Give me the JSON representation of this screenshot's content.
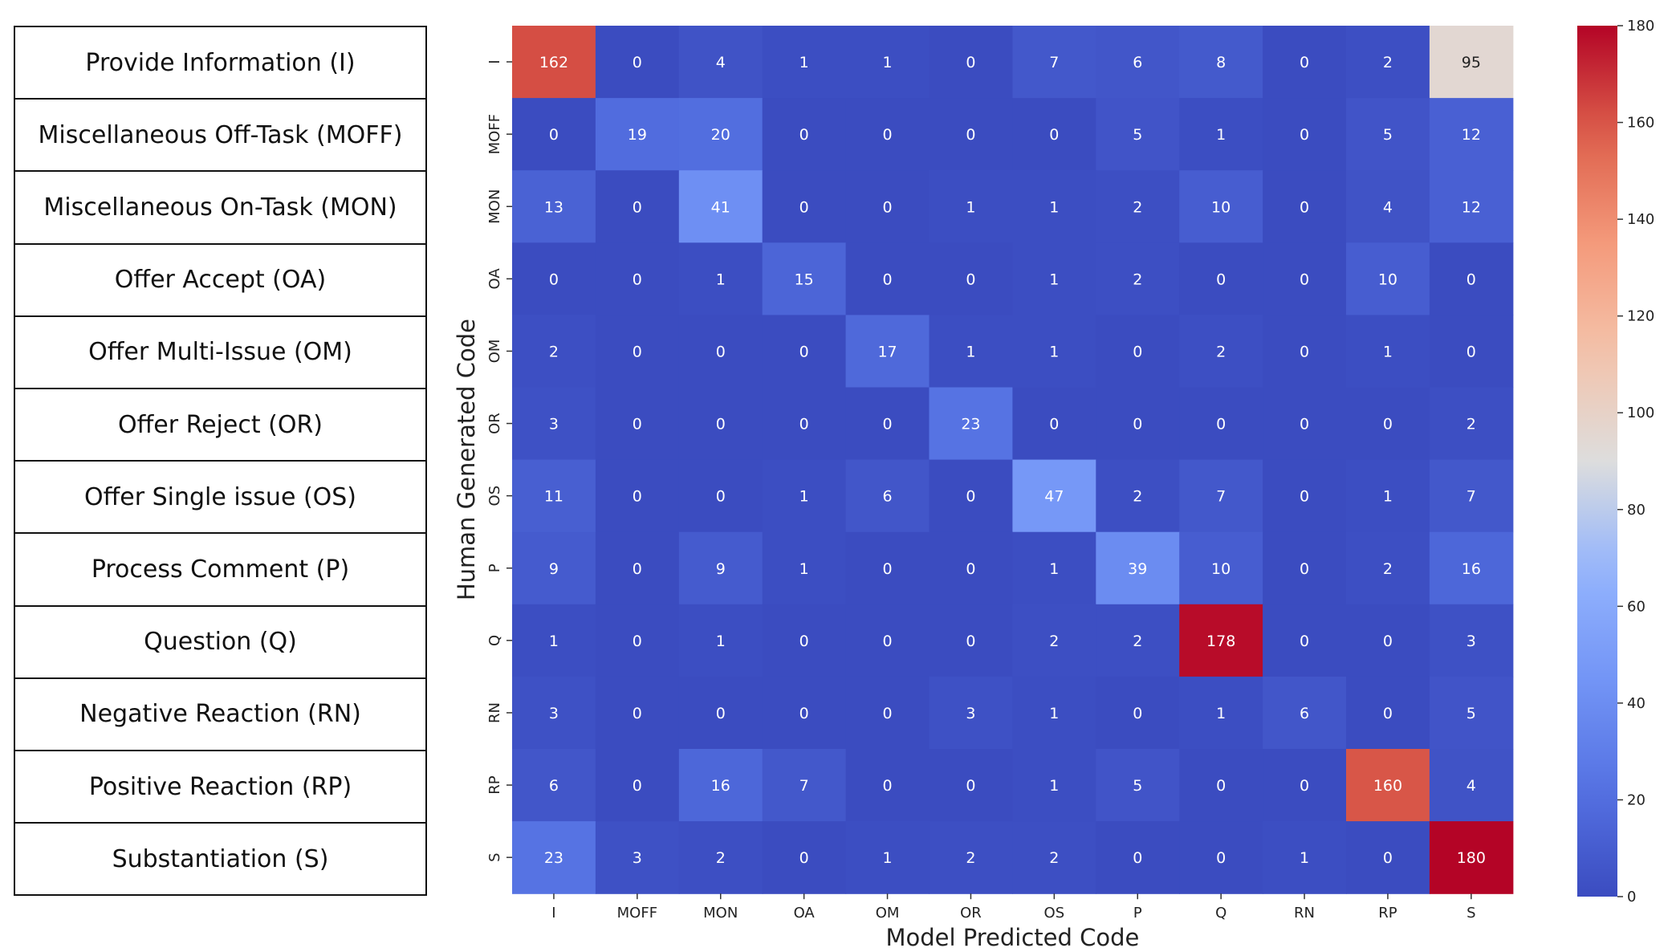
{
  "legend": [
    "Provide Information (I)",
    "Miscellaneous Off-Task (MOFF)",
    "Miscellaneous On-Task (MON)",
    "Offer Accept (OA)",
    "Offer Multi-Issue (OM)",
    "Offer Reject (OR)",
    "Offer Single issue (OS)",
    "Process Comment (P)",
    "Question (Q)",
    "Negative Reaction (RN)",
    "Positive Reaction (RP)",
    "Substantiation (S)"
  ],
  "chart_data": {
    "type": "heatmap",
    "title": "",
    "xlabel": "Model Predicted Code",
    "ylabel": "Human Generated Code",
    "x_categories": [
      "I",
      "MOFF",
      "MON",
      "OA",
      "OM",
      "OR",
      "OS",
      "P",
      "Q",
      "RN",
      "RP",
      "S"
    ],
    "y_categories": [
      "I",
      "MOFF",
      "MON",
      "OA",
      "OM",
      "OR",
      "OS",
      "P",
      "Q",
      "RN",
      "RP",
      "S"
    ],
    "values": [
      [
        162,
        0,
        4,
        1,
        1,
        0,
        7,
        6,
        8,
        0,
        2,
        95
      ],
      [
        0,
        19,
        20,
        0,
        0,
        0,
        0,
        5,
        1,
        0,
        5,
        12
      ],
      [
        13,
        0,
        41,
        0,
        0,
        1,
        1,
        2,
        10,
        0,
        4,
        12
      ],
      [
        0,
        0,
        1,
        15,
        0,
        0,
        1,
        2,
        0,
        0,
        10,
        0
      ],
      [
        2,
        0,
        0,
        0,
        17,
        1,
        1,
        0,
        2,
        0,
        1,
        0
      ],
      [
        3,
        0,
        0,
        0,
        0,
        23,
        0,
        0,
        0,
        0,
        0,
        2
      ],
      [
        11,
        0,
        0,
        1,
        6,
        0,
        47,
        2,
        7,
        0,
        1,
        7
      ],
      [
        9,
        0,
        9,
        1,
        0,
        0,
        1,
        39,
        10,
        0,
        2,
        16
      ],
      [
        1,
        0,
        1,
        0,
        0,
        0,
        2,
        2,
        178,
        0,
        0,
        3
      ],
      [
        3,
        0,
        0,
        0,
        0,
        3,
        1,
        0,
        1,
        6,
        0,
        5
      ],
      [
        6,
        0,
        16,
        7,
        0,
        0,
        1,
        5,
        0,
        0,
        160,
        4
      ],
      [
        23,
        3,
        2,
        0,
        1,
        2,
        2,
        0,
        0,
        1,
        0,
        180
      ]
    ],
    "colormap": "coolwarm",
    "vmin": 0,
    "vmax": 180,
    "colorbar_ticks": [
      0,
      20,
      40,
      60,
      80,
      100,
      120,
      140,
      160,
      180
    ],
    "annotate": true,
    "colors": {
      "low": "#3b4cc0",
      "mid": "#dddddd",
      "high": "#b40426"
    }
  }
}
